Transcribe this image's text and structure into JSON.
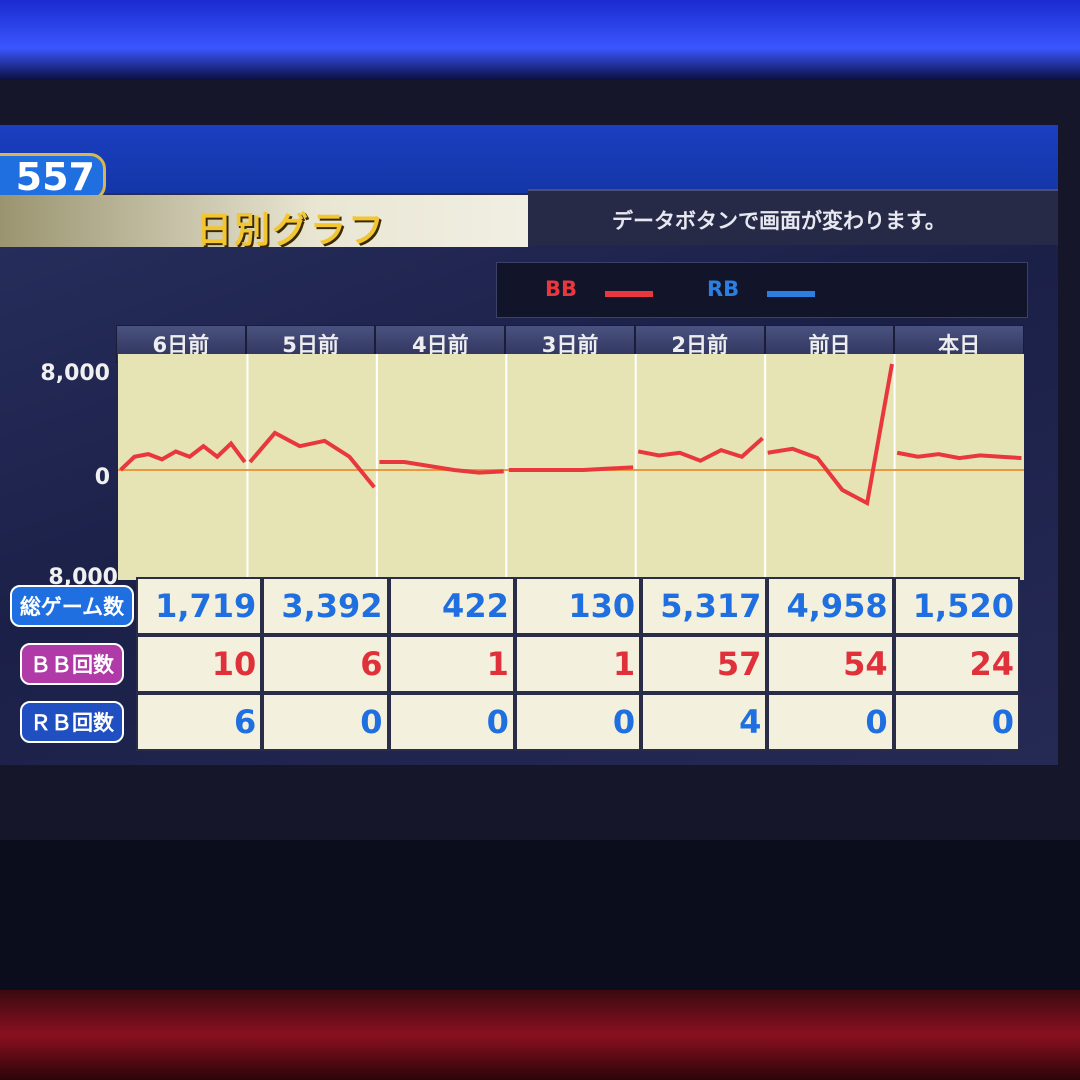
{
  "header": {
    "machine_number": "557",
    "title": "日別グラフ",
    "message": "データボタンで画面が変わります。"
  },
  "legend": [
    {
      "label": "BB",
      "color": "#e8383d"
    },
    {
      "label": "RB",
      "color": "#2a7fe0"
    }
  ],
  "chart_data": {
    "type": "line",
    "categories": [
      "6日前",
      "5日前",
      "4日前",
      "3日前",
      "2日前",
      "前日",
      "本日"
    ],
    "ytick_labels": [
      "8,000",
      "0",
      "8,000"
    ],
    "ylim": [
      -8000,
      8000
    ],
    "zero_line_color": "#e89a40",
    "series_color_default": "#e8383d",
    "days": [
      [
        0,
        1000,
        1200,
        800,
        1400,
        1000,
        1800,
        1000,
        2000,
        600
      ],
      [
        600,
        2800,
        1800,
        2200,
        1000,
        -1300
      ],
      [
        600,
        600,
        300,
        0,
        -200,
        -100
      ],
      [
        0,
        0,
        0,
        0,
        100,
        200
      ],
      [
        1400,
        1100,
        1300,
        700,
        1500,
        1000,
        2400
      ],
      [
        1300,
        1600,
        900,
        -1500,
        -2500,
        8000
      ],
      [
        1300,
        1000,
        1200,
        900,
        1100,
        1000,
        900
      ]
    ]
  },
  "table": {
    "rows": [
      {
        "label": "総ゲーム数",
        "color": "#1f6fe0",
        "value_color": "#1f6fe0",
        "values": [
          "1,719",
          "3,392",
          "422",
          "130",
          "5,317",
          "4,958",
          "1,520"
        ]
      },
      {
        "label": "ＢＢ回数",
        "color": "#b03aa8",
        "value_color": "#e0303a",
        "values": [
          "10",
          "6",
          "1",
          "1",
          "57",
          "54",
          "24"
        ]
      },
      {
        "label": "ＲＢ回数",
        "color": "#1f4fc0",
        "value_color": "#1f6fe0",
        "values": [
          "6",
          "0",
          "0",
          "0",
          "4",
          "0",
          "0"
        ]
      }
    ]
  }
}
